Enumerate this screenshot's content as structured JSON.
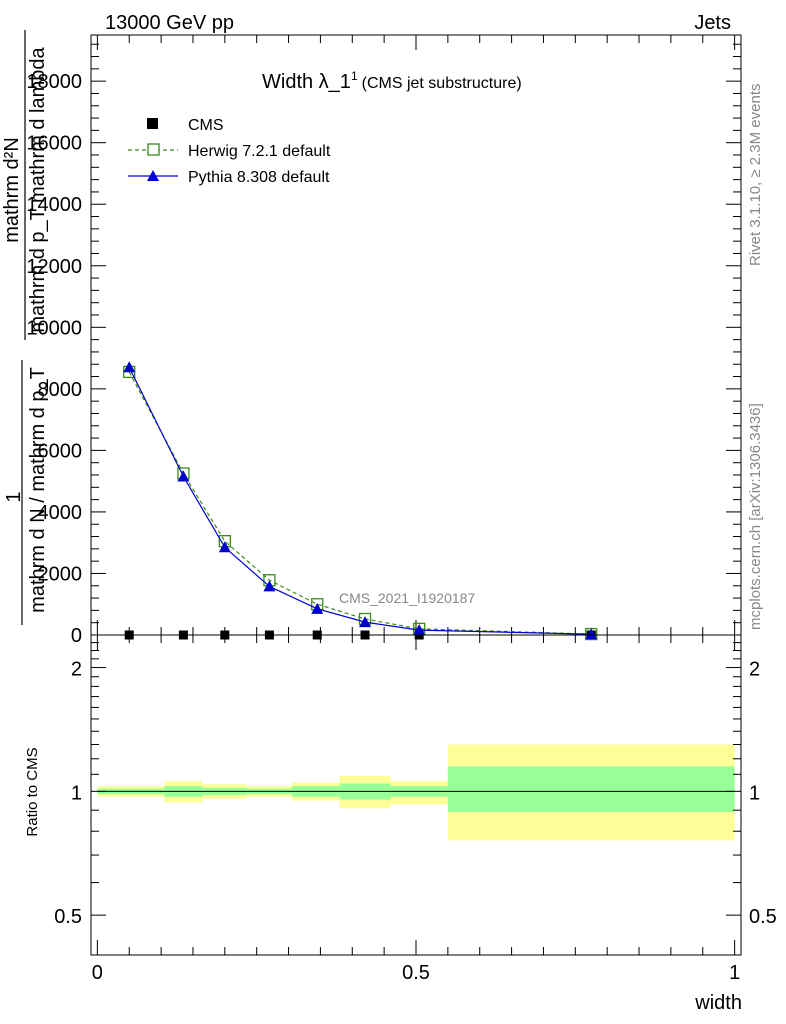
{
  "header": {
    "left": "13000 GeV pp",
    "right": "Jets"
  },
  "side_labels": {
    "rivet": "Rivet 3.1.10, ≥ 2.3M events",
    "mcplots": "mcplots.cern.ch [arXiv:1306.3436]"
  },
  "watermark": "CMS_2021_I1920187",
  "chart_data": [
    {
      "type": "line",
      "title": "Width λ_1",
      "title_sup": "1",
      "subtitle": "(CMS jet substructure)",
      "ylabel_num": "mathrm d²N",
      "ylabel_den": "mathrm d p_T mathrm d lambda",
      "ylabel_pre_num": "1",
      "ylabel_pre_den": "mathrm d N / mathrm d p_T",
      "ylim": [
        0,
        19500
      ],
      "xlim": [
        -0.01,
        1.01
      ],
      "yticks": [
        0,
        2000,
        4000,
        6000,
        8000,
        10000,
        12000,
        14000,
        16000,
        18000
      ],
      "ytick_labels": [
        "0",
        "2000",
        "4000",
        "6000",
        "8000",
        "10000",
        "12000",
        "14000",
        "16000",
        "18000"
      ],
      "legend_position": "top-left",
      "series": [
        {
          "name": "CMS",
          "color": "#000000",
          "marker": "square",
          "x": [
            0.05,
            0.135,
            0.2,
            0.27,
            0.345,
            0.42,
            0.505,
            0.775
          ],
          "y": [
            0,
            0,
            0,
            0,
            0,
            0,
            0,
            0
          ]
        },
        {
          "name": "Herwig 7.2.1 default",
          "color": "#3a8a1c",
          "marker": "open-square",
          "dashed": true,
          "x": [
            0.05,
            0.135,
            0.2,
            0.27,
            0.345,
            0.42,
            0.505,
            0.775
          ],
          "y": [
            8550,
            5250,
            3050,
            1780,
            1000,
            520,
            200,
            30
          ]
        },
        {
          "name": "Pythia 8.308 default",
          "color": "#0000cc",
          "marker": "triangle",
          "x": [
            0.05,
            0.135,
            0.2,
            0.27,
            0.345,
            0.42,
            0.505,
            0.775
          ],
          "y": [
            8700,
            5150,
            2850,
            1580,
            850,
            420,
            160,
            25
          ]
        }
      ]
    },
    {
      "type": "area",
      "ylabel": "Ratio to CMS",
      "xlabel": "width",
      "log_scale_y": true,
      "ylim": [
        0.4,
        2.4
      ],
      "xlim": [
        -0.01,
        1.01
      ],
      "xticks": [
        0,
        0.5,
        1
      ],
      "xtick_labels": [
        "0",
        "0.5",
        "1"
      ],
      "yticks": [
        0.5,
        1,
        2
      ],
      "ytick_labels": [
        "0.5",
        "1",
        "2"
      ],
      "yellow_color": "#ffff99",
      "green_color": "#99ff99",
      "bands": [
        {
          "x0": 0.0,
          "x1": 0.105,
          "y_lo": 0.97,
          "y_hi": 1.03,
          "g_lo": 0.985,
          "g_hi": 1.015
        },
        {
          "x0": 0.105,
          "x1": 0.165,
          "y_lo": 0.94,
          "y_hi": 1.06,
          "g_lo": 0.97,
          "g_hi": 1.03
        },
        {
          "x0": 0.165,
          "x1": 0.235,
          "y_lo": 0.96,
          "y_hi": 1.04,
          "g_lo": 0.98,
          "g_hi": 1.02
        },
        {
          "x0": 0.235,
          "x1": 0.305,
          "y_lo": 0.97,
          "y_hi": 1.03,
          "g_lo": 0.985,
          "g_hi": 1.015
        },
        {
          "x0": 0.305,
          "x1": 0.38,
          "y_lo": 0.95,
          "y_hi": 1.05,
          "g_lo": 0.97,
          "g_hi": 1.03
        },
        {
          "x0": 0.38,
          "x1": 0.46,
          "y_lo": 0.91,
          "y_hi": 1.09,
          "g_lo": 0.955,
          "g_hi": 1.045
        },
        {
          "x0": 0.46,
          "x1": 0.55,
          "y_lo": 0.93,
          "y_hi": 1.06,
          "g_lo": 0.97,
          "g_hi": 1.03
        },
        {
          "x0": 0.55,
          "x1": 1.0,
          "y_lo": 0.76,
          "y_hi": 1.3,
          "g_lo": 0.89,
          "g_hi": 1.15
        }
      ]
    }
  ]
}
